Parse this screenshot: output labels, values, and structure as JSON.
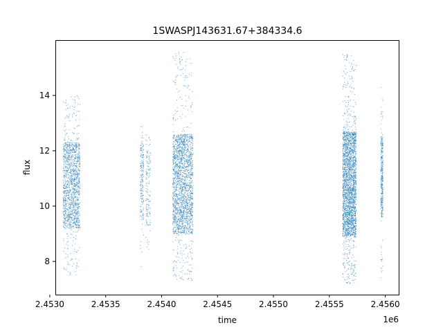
{
  "chart_data": {
    "type": "scatter",
    "title": "1SWASPJ143631.67+384334.6",
    "xlabel": "time",
    "ylabel": "flux",
    "x_offset_label": "1e6",
    "xlim": [
      2.45305,
      2.45612
    ],
    "ylim": [
      6.8,
      16.0
    ],
    "x_ticks": [
      2.453,
      2.4535,
      2.454,
      2.4545,
      2.455,
      2.4555,
      2.456
    ],
    "x_tick_labels": [
      "2.4530",
      "2.4535",
      "2.4540",
      "2.4545",
      "2.4550",
      "2.4555",
      "2.4560"
    ],
    "y_ticks": [
      8,
      10,
      12,
      14
    ],
    "y_tick_labels": [
      "8",
      "10",
      "12",
      "14"
    ],
    "grid": false,
    "marker_color": "#1f77b4",
    "series": [
      {
        "clusters": [
          {
            "x_range": [
              2.45312,
              2.45327
            ],
            "y_range": [
              9.2,
              12.3
            ],
            "y_extreme": [
              7.5,
              14.0
            ],
            "count": 1500
          },
          {
            "x_range": [
              2.45381,
              2.45384
            ],
            "y_range": [
              9.5,
              12.2
            ],
            "y_extreme": [
              7.6,
              13.1
            ],
            "count": 200
          },
          {
            "x_range": [
              2.45386,
              2.4539
            ],
            "y_range": [
              9.3,
              12.0
            ],
            "y_extreme": [
              8.4,
              12.6
            ],
            "count": 150
          },
          {
            "x_range": [
              2.4541,
              2.45428
            ],
            "y_range": [
              9.0,
              12.6
            ],
            "y_extreme": [
              7.3,
              15.6
            ],
            "count": 2200
          },
          {
            "x_range": [
              2.45562,
              2.45574
            ],
            "y_range": [
              8.9,
              12.7
            ],
            "y_extreme": [
              7.2,
              15.5
            ],
            "count": 2600
          },
          {
            "x_range": [
              2.45596,
              2.45598
            ],
            "y_range": [
              9.6,
              12.5
            ],
            "y_extreme": [
              7.4,
              14.5
            ],
            "count": 350
          }
        ]
      }
    ]
  }
}
